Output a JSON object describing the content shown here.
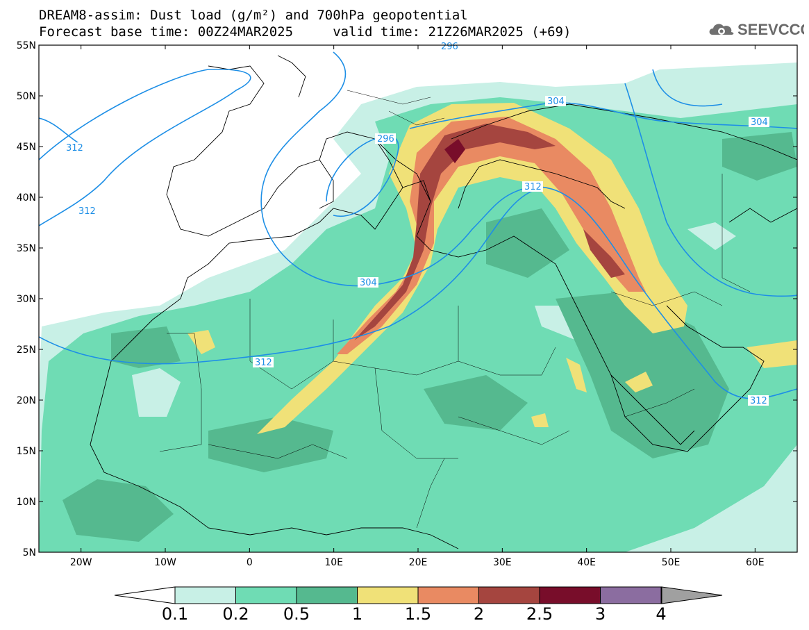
{
  "title": {
    "line1": "DREAM8-assim: Dust load (g/m²) and 700hPa geopotential",
    "line2": "Forecast base time: 00Z24MAR2025     valid time: 21Z26MAR2025 (+69)"
  },
  "logo": {
    "icon": "cloud-gear-icon",
    "text": "SEEVCCC"
  },
  "map": {
    "lon_range": [
      -25,
      65
    ],
    "lat_range": [
      5,
      55
    ],
    "lon_ticks": [
      "20W",
      "10W",
      "0",
      "10E",
      "20E",
      "30E",
      "40E",
      "50E",
      "60E"
    ],
    "lat_ticks": [
      "55N",
      "50N",
      "45N",
      "40N",
      "35N",
      "30N",
      "25N",
      "20N",
      "15N",
      "10N",
      "5N"
    ],
    "contour_labels": [
      "296",
      "296",
      "304",
      "304",
      "304",
      "312",
      "312",
      "312",
      "312",
      "312"
    ]
  },
  "colorbar": {
    "labels": [
      "0.1",
      "0.2",
      "0.5",
      "1",
      "1.5",
      "2",
      "2.5",
      "3",
      "4"
    ],
    "colors": [
      "#c8f0e6",
      "#6fdcb4",
      "#55b98f",
      "#f0e178",
      "#e98a62",
      "#a5453f",
      "#780d2a",
      "#8b6da0",
      "#a0a0a0"
    ]
  },
  "colors": {
    "dust_light": "#c8f0e6",
    "dust_mid": "#6fdcb4",
    "dust_dark": "#55b98f",
    "dust_yellow": "#f0e178",
    "dust_orange": "#e98a62",
    "dust_red": "#a5453f",
    "dust_maroon": "#780d2a",
    "contour": "#1e8fe6"
  }
}
